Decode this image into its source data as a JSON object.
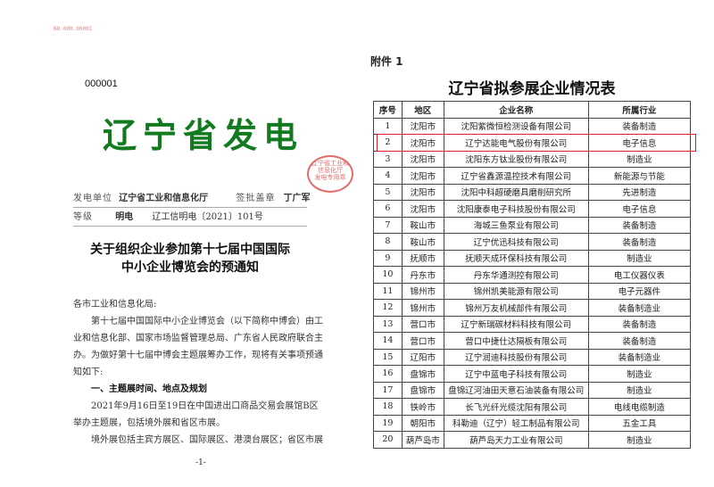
{
  "left_page": {
    "serial": "NO.000.00001",
    "doc_number": "000001",
    "banner": "辽宁省发电",
    "sender_label": "发电单位",
    "sender": "辽宁省工业和信息化厅",
    "signer_label": "签批盖章",
    "signer": "丁广军",
    "grade_label": "等级",
    "grade": "明电",
    "ref_no": "辽工信明电〔2021〕101号",
    "stamp_text": [
      "辽宁省工业和信息化厅",
      "发电专用章"
    ],
    "title_lines": [
      "关于组织企业参加第十七届中国国际",
      "中小企业博览会的预通知"
    ],
    "salutation": "各市工业和信息化局:",
    "paragraph1": "第十七届中国国际中小企业博览会（以下简称中博会）由工业和信息化部、国家市场监督管理总局、广东省人民政府联合主办。为做好第十七届中博会主题展筹办工作，现将有关事项预通知如下:",
    "heading1": "一、主题展时间、地点及规划",
    "paragraph2": "2021年9月16日至19日在中国进出口商品交易会展馆B区举办主题展，包括境外展和省区市展。",
    "paragraph3": "境外展包括主宾方展区、国际展区、港澳台展区；省区市展",
    "page_number": "-1-"
  },
  "right_page": {
    "attachment_label": "附件 1",
    "table_title": "辽宁省拟参展企业情况表",
    "highlight_color": "#e02020",
    "columns": [
      "序号",
      "地区",
      "企业名称",
      "所属行业"
    ],
    "rows": [
      [
        "1",
        "沈阳市",
        "沈阳紫微恒检测设备有限公司",
        "装备制造"
      ],
      [
        "2",
        "沈阳市",
        "辽宁达能电气股份有限公司",
        "电子信息"
      ],
      [
        "3",
        "沈阳市",
        "沈阳东方钛业股份有限公司",
        "制造业"
      ],
      [
        "4",
        "沈阳市",
        "辽宁省鑫源温控技术有限公司",
        "新能源与节能"
      ],
      [
        "5",
        "沈阳市",
        "沈阳中科超硬磨具磨削研究所",
        "先进制造"
      ],
      [
        "6",
        "沈阳市",
        "沈阳康泰电子科技股份有限公司",
        "电子信息"
      ],
      [
        "7",
        "鞍山市",
        "海城三鱼泵业有限公司",
        "装备制造"
      ],
      [
        "8",
        "鞍山市",
        "辽宁优迅科技有限公司",
        "装备制造"
      ],
      [
        "9",
        "抚顺市",
        "抚顺天成环保科技有限公司",
        "制造业"
      ],
      [
        "10",
        "丹东市",
        "丹东华通测控有限公司",
        "电工仪器仪表"
      ],
      [
        "11",
        "锦州市",
        "锦州凯美能源有限公司",
        "电子元器件"
      ],
      [
        "12",
        "锦州市",
        "锦州万友机械部件有限公司",
        "装备制造业"
      ],
      [
        "13",
        "营口市",
        "辽宁新瑞碳材料科技有限公司",
        "装备制造"
      ],
      [
        "14",
        "营口市",
        "营口中捷仕达隔板有限公司",
        "装备制造"
      ],
      [
        "15",
        "辽阳市",
        "辽宁润迪科技股份有限公司",
        "装备制造业"
      ],
      [
        "16",
        "盘锦市",
        "辽宁中蓝电子科技有限公司",
        "制造业"
      ],
      [
        "17",
        "盘锦市",
        "盘锦辽河油田天意石油装备有限公司",
        "制造业"
      ],
      [
        "18",
        "铁岭市",
        "长飞光纤光缆沈阳有限公司",
        "电线电缆制造"
      ],
      [
        "19",
        "朝阳市",
        "科勒迪（辽宁）轻工制品有限公司",
        "五金工具"
      ],
      [
        "20",
        "葫芦岛市",
        "葫芦岛天力工业有限公司",
        "制造业"
      ]
    ]
  }
}
